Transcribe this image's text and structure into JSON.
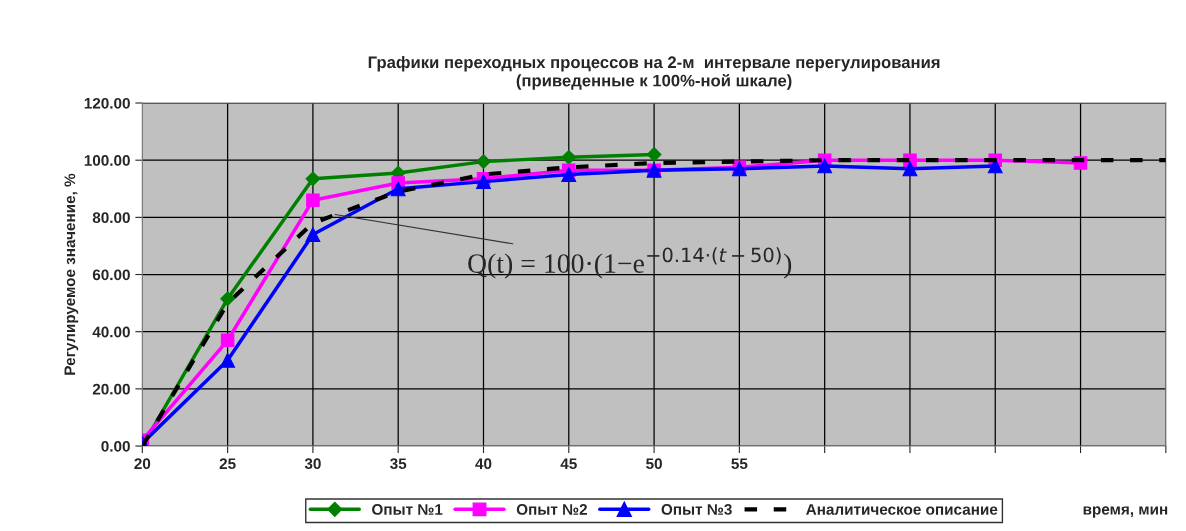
{
  "chart_data": {
    "type": "line",
    "title": "Графики переходных процессов на 2-м  интервале перегулирования\n(приведенные к 100%-ной шкале)",
    "xlabel": "время, мин",
    "ylabel": "Регулируемое значение, %",
    "series": [
      {
        "name": "Опыт №1",
        "color": "#008000",
        "marker": "diamond",
        "line_style": "solid",
        "x": [
          20,
          25,
          30,
          35,
          40,
          45,
          50
        ],
        "values": [
          0,
          51.5,
          93.5,
          95.5,
          99.5,
          101,
          102
        ]
      },
      {
        "name": "Опыт №2",
        "color": "#ff00ff",
        "marker": "square",
        "line_style": "solid",
        "x": [
          20,
          25,
          30,
          35,
          40,
          45,
          50,
          55,
          60,
          65,
          70,
          75
        ],
        "values": [
          2,
          37,
          86,
          92,
          93.5,
          96.5,
          96.5,
          97.5,
          100,
          100,
          100,
          99
        ]
      },
      {
        "name": "Опыт №3",
        "color": "#0000ff",
        "marker": "triangle",
        "line_style": "solid",
        "x": [
          20,
          25,
          30,
          35,
          40,
          45,
          50,
          55,
          60,
          65,
          70
        ],
        "values": [
          1,
          30,
          74,
          90,
          92.5,
          95,
          96.5,
          97,
          98,
          97,
          98
        ]
      },
      {
        "name": "Аналитическое описание",
        "color": "#000000",
        "marker": "none",
        "line_style": "dashed",
        "x": [
          20,
          25,
          30,
          35,
          40,
          45,
          50,
          55,
          60,
          65,
          70,
          75,
          80
        ],
        "values": [
          0,
          50,
          78,
          89,
          95,
          97.5,
          99,
          99.5,
          100,
          100,
          100,
          100,
          100
        ]
      }
    ],
    "annotations": [
      {
        "text": "Q(t) = 100·(1−e$^{−0.14·(t−50)}$)",
        "x": 31.3,
        "y": 81
      }
    ],
    "xlim": [
      20,
      80
    ],
    "xticks": [
      20,
      25,
      30,
      35,
      40,
      45,
      50,
      55,
      {
        "value": 60,
        "label": null
      },
      {
        "value": 65,
        "label": null
      },
      {
        "value": 70,
        "label": null
      },
      {
        "value": 75,
        "label": null
      },
      {
        "value": 80,
        "label": null
      }
    ],
    "ylim": [
      0,
      120
    ],
    "yticks": [
      {
        "value": 0,
        "label": "0.00"
      },
      {
        "value": 20,
        "label": "20.00"
      },
      {
        "value": 40,
        "label": "40.00"
      },
      {
        "value": 60,
        "label": "60.00"
      },
      {
        "value": 80,
        "label": "80.00"
      },
      {
        "value": 100,
        "label": "100.00"
      },
      {
        "value": 120,
        "label": "120.00"
      }
    ],
    "grid": true,
    "legend": "bottom"
  }
}
